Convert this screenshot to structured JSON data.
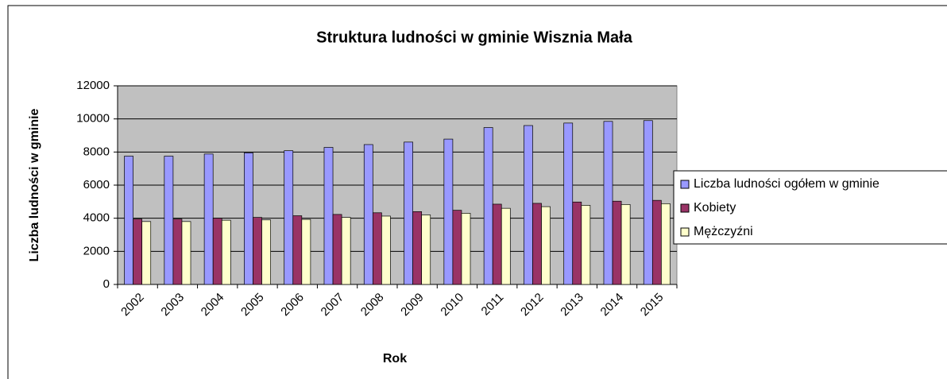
{
  "chart_data": {
    "type": "bar",
    "title": "Struktura ludności w gminie Wisznia Mała",
    "x_label": "Rok",
    "y_label": "Liczba ludności w gminie",
    "categories": [
      "2002",
      "2003",
      "2004",
      "2005",
      "2006",
      "2007",
      "2008",
      "2009",
      "2010",
      "2011",
      "2012",
      "2013",
      "2014",
      "2015"
    ],
    "series": [
      {
        "name": "Liczba ludności ogółem w gminie",
        "color": "#9999ff",
        "values": [
          7750,
          7750,
          7880,
          7950,
          8080,
          8280,
          8450,
          8600,
          8780,
          9480,
          9600,
          9750,
          9850,
          9900
        ]
      },
      {
        "name": "Kobiety",
        "color": "#993366",
        "values": [
          3950,
          3950,
          4000,
          4050,
          4150,
          4230,
          4330,
          4400,
          4480,
          4850,
          4900,
          4980,
          5030,
          5080
        ]
      },
      {
        "name": "Mężczyźni",
        "color": "#ffffcc",
        "values": [
          3800,
          3800,
          3880,
          3900,
          3930,
          4050,
          4130,
          4200,
          4300,
          4600,
          4700,
          4780,
          4830,
          4880
        ]
      }
    ],
    "ylim": [
      0,
      12000
    ],
    "yticks": [
      0,
      2000,
      4000,
      6000,
      8000,
      10000,
      12000
    ],
    "grid": true,
    "legend": "right",
    "plot_background": "#c0c0c0"
  }
}
